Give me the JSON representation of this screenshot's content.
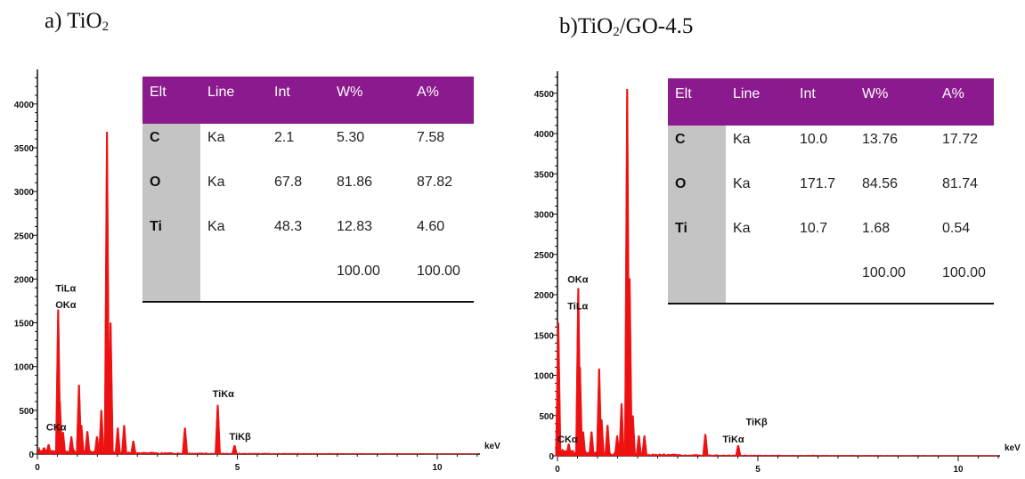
{
  "panels": [
    {
      "label": "a) TiO",
      "label_sub": "2",
      "label_tail": ""
    },
    {
      "label": "b)TiO",
      "label_sub": "2",
      "label_tail": "/GO-4.5"
    }
  ],
  "chart_data": [
    {
      "type": "bar",
      "xlabel": "keV",
      "xlim": [
        0,
        11
      ],
      "ylim": [
        0,
        4300
      ],
      "x_ticks": [
        0,
        5,
        10
      ],
      "y_ticks": [
        0,
        500,
        1000,
        1500,
        2000,
        2500,
        3000,
        3500,
        4000
      ],
      "grid": false,
      "color": "#ee1111",
      "peaks": [
        {
          "x": 0.28,
          "y": 110
        },
        {
          "x": 0.52,
          "y": 1650
        },
        {
          "x": 0.56,
          "y": 600
        },
        {
          "x": 0.64,
          "y": 250
        },
        {
          "x": 0.85,
          "y": 200
        },
        {
          "x": 1.04,
          "y": 790
        },
        {
          "x": 1.1,
          "y": 330
        },
        {
          "x": 1.25,
          "y": 260
        },
        {
          "x": 1.49,
          "y": 200
        },
        {
          "x": 1.6,
          "y": 500
        },
        {
          "x": 1.74,
          "y": 3680
        },
        {
          "x": 1.83,
          "y": 1500
        },
        {
          "x": 2.01,
          "y": 300
        },
        {
          "x": 2.17,
          "y": 330
        },
        {
          "x": 2.4,
          "y": 150
        },
        {
          "x": 3.69,
          "y": 300
        },
        {
          "x": 4.51,
          "y": 560
        },
        {
          "x": 4.93,
          "y": 100
        }
      ],
      "annotations": [
        {
          "text": "TiLα",
          "x": 0.45,
          "y": 1855
        },
        {
          "text": "OKα",
          "x": 0.45,
          "y": 1670
        },
        {
          "text": "CKα",
          "x": 0.22,
          "y": 270
        },
        {
          "text": "TiKα",
          "x": 4.38,
          "y": 650
        },
        {
          "text": "TiKβ",
          "x": 4.8,
          "y": 165
        }
      ],
      "table": {
        "columns": [
          "Elt",
          "Line",
          "Int",
          "W%",
          "A%"
        ],
        "rows": [
          [
            "C",
            "Ka",
            "2.1",
            "5.30",
            "7.58"
          ],
          [
            "O",
            "Ka",
            "67.8",
            "81.86",
            "87.82"
          ],
          [
            "Ti",
            "Ka",
            "48.3",
            "12.83",
            "4.60"
          ],
          [
            "",
            "",
            "",
            "100.00",
            "100.00"
          ]
        ],
        "header_color": "#8b1a8e",
        "element_col_color": "#c4c4c4"
      }
    },
    {
      "type": "bar",
      "xlabel": "keV",
      "xlim": [
        0,
        11
      ],
      "ylim": [
        0,
        4700
      ],
      "x_ticks": [
        0,
        5,
        10
      ],
      "y_ticks": [
        0,
        500,
        1000,
        1500,
        2000,
        2500,
        3000,
        3500,
        4000,
        4500
      ],
      "grid": false,
      "color": "#ee1111",
      "peaks": [
        {
          "x": 0.02,
          "y": 1650
        },
        {
          "x": 0.28,
          "y": 150
        },
        {
          "x": 0.52,
          "y": 2080
        },
        {
          "x": 0.56,
          "y": 1100
        },
        {
          "x": 0.64,
          "y": 300
        },
        {
          "x": 0.85,
          "y": 300
        },
        {
          "x": 1.04,
          "y": 1080
        },
        {
          "x": 1.1,
          "y": 450
        },
        {
          "x": 1.25,
          "y": 380
        },
        {
          "x": 1.49,
          "y": 250
        },
        {
          "x": 1.6,
          "y": 650
        },
        {
          "x": 1.74,
          "y": 4550
        },
        {
          "x": 1.8,
          "y": 2200
        },
        {
          "x": 1.88,
          "y": 500
        },
        {
          "x": 2.03,
          "y": 250
        },
        {
          "x": 2.17,
          "y": 250
        },
        {
          "x": 3.69,
          "y": 270
        },
        {
          "x": 4.51,
          "y": 130
        }
      ],
      "annotations": [
        {
          "text": "OKα",
          "x": 0.25,
          "y": 2150
        },
        {
          "text": "TiLα",
          "x": 0.25,
          "y": 1820
        },
        {
          "text": "CKα",
          "x": 0.0,
          "y": 165
        },
        {
          "text": "TiKβ",
          "x": 4.7,
          "y": 380
        },
        {
          "text": "TiKα",
          "x": 4.12,
          "y": 165
        }
      ],
      "table": {
        "columns": [
          "Elt",
          "Line",
          "Int",
          "W%",
          "A%"
        ],
        "rows": [
          [
            "C",
            "Ka",
            "10.0",
            "13.76",
            "17.72"
          ],
          [
            "O",
            "Ka",
            "171.7",
            "84.56",
            "81.74"
          ],
          [
            "Ti",
            "Ka",
            "10.7",
            "1.68",
            "0.54"
          ],
          [
            "",
            "",
            "",
            "100.00",
            "100.00"
          ]
        ],
        "header_color": "#8b1a8e",
        "element_col_color": "#c4c4c4"
      }
    }
  ]
}
